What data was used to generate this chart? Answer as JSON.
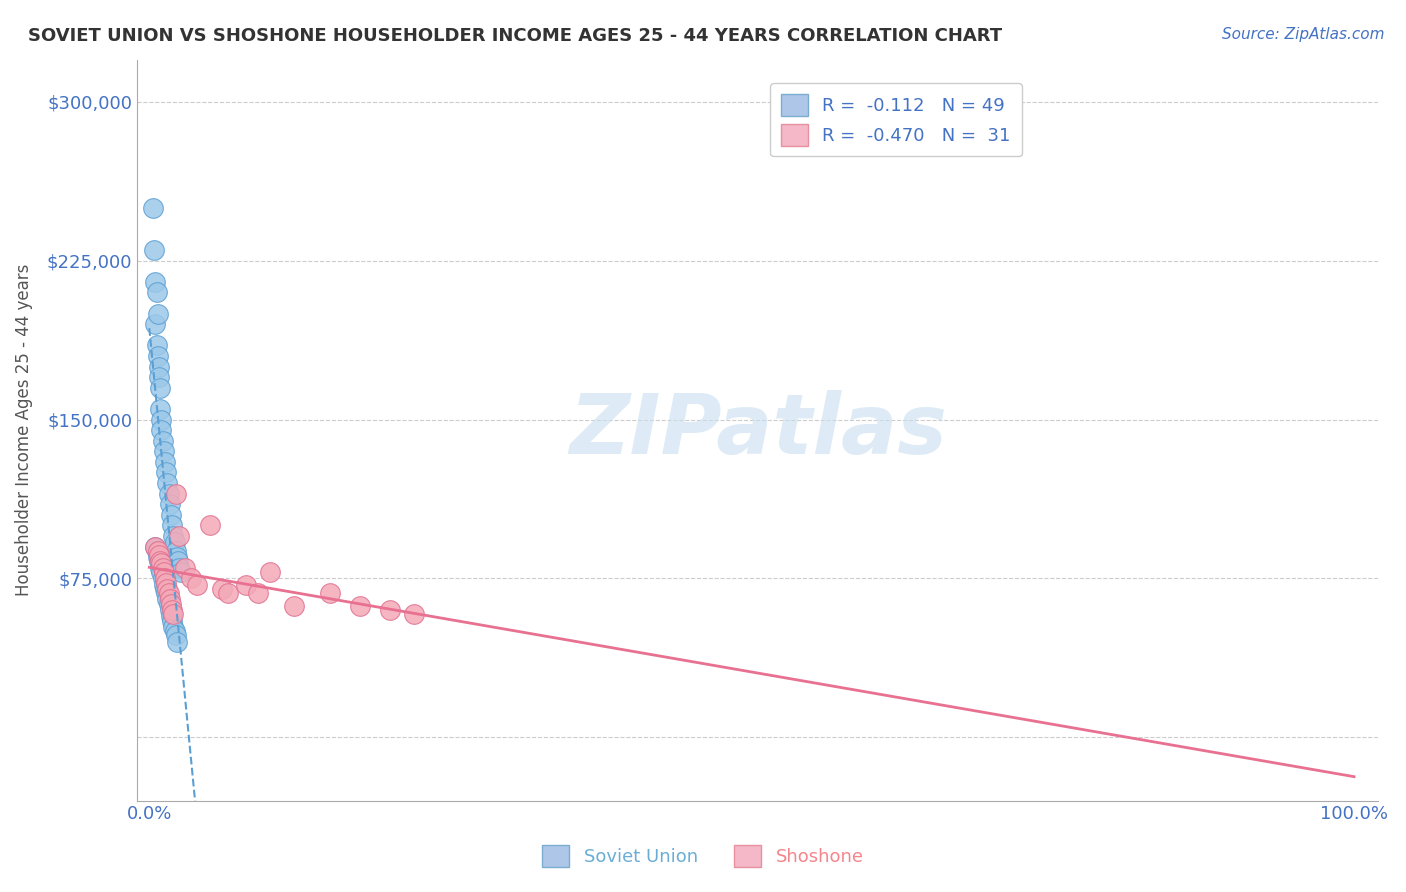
{
  "title": "SOVIET UNION VS SHOSHONE HOUSEHOLDER INCOME AGES 25 - 44 YEARS CORRELATION CHART",
  "source": "Source: ZipAtlas.com",
  "ylabel": "Householder Income Ages 25 - 44 years",
  "y_tick_labels": [
    "",
    "$75,000",
    "$150,000",
    "$225,000",
    "$300,000"
  ],
  "y_ticks": [
    0,
    75000,
    150000,
    225000,
    300000
  ],
  "xlim": [
    -0.01,
    1.02
  ],
  "ylim": [
    -30000,
    320000
  ],
  "su_color_fill": "#9dc8e8",
  "su_color_edge": "#5a9fd4",
  "sh_color_fill": "#f4aab8",
  "sh_color_edge": "#e07090",
  "su_line_color": "#5a9fd4",
  "sh_line_color": "#e87090",
  "legend_su_fill": "#aec6e8",
  "legend_su_edge": "#7aadd0",
  "legend_sh_fill": "#f4b8c8",
  "legend_sh_edge": "#e890a0",
  "legend_label_su": "R =  -0.112   N = 49",
  "legend_label_sh": "R =  -0.470   N =  31",
  "bottom_label_su": "Soviet Union",
  "bottom_label_sh": "Shoshone",
  "bottom_su_color": "#6aaed6",
  "bottom_sh_color": "#f4868c",
  "watermark": "ZIPatlas",
  "watermark_color": "#c8dff0",
  "grid_color": "#cccccc",
  "background_color": "#ffffff",
  "title_color": "#333333",
  "axis_label_color": "#555555",
  "tick_label_color": "#4472c4",
  "su_x": [
    0.003,
    0.004,
    0.005,
    0.005,
    0.006,
    0.006,
    0.007,
    0.007,
    0.008,
    0.008,
    0.009,
    0.009,
    0.01,
    0.01,
    0.011,
    0.012,
    0.013,
    0.014,
    0.015,
    0.016,
    0.017,
    0.018,
    0.019,
    0.02,
    0.021,
    0.022,
    0.023,
    0.024,
    0.025,
    0.026,
    0.005,
    0.006,
    0.007,
    0.008,
    0.009,
    0.01,
    0.011,
    0.012,
    0.013,
    0.014,
    0.015,
    0.016,
    0.017,
    0.018,
    0.019,
    0.02,
    0.021,
    0.022,
    0.023
  ],
  "su_y": [
    250000,
    230000,
    215000,
    195000,
    210000,
    185000,
    200000,
    180000,
    175000,
    170000,
    165000,
    155000,
    150000,
    145000,
    140000,
    135000,
    130000,
    125000,
    120000,
    115000,
    110000,
    105000,
    100000,
    95000,
    92000,
    88000,
    85000,
    83000,
    80000,
    78000,
    90000,
    88000,
    85000,
    83000,
    80000,
    78000,
    75000,
    72000,
    70000,
    68000,
    65000,
    63000,
    60000,
    57000,
    55000,
    52000,
    50000,
    48000,
    45000
  ],
  "sh_x": [
    0.005,
    0.007,
    0.008,
    0.009,
    0.01,
    0.011,
    0.012,
    0.013,
    0.014,
    0.015,
    0.016,
    0.017,
    0.018,
    0.019,
    0.02,
    0.022,
    0.025,
    0.03,
    0.035,
    0.04,
    0.05,
    0.06,
    0.065,
    0.08,
    0.09,
    0.1,
    0.12,
    0.15,
    0.175,
    0.2,
    0.22
  ],
  "sh_y": [
    90000,
    88000,
    86000,
    83000,
    82000,
    80000,
    78000,
    75000,
    73000,
    70000,
    68000,
    65000,
    63000,
    60000,
    58000,
    115000,
    95000,
    80000,
    75000,
    72000,
    100000,
    70000,
    68000,
    72000,
    68000,
    78000,
    62000,
    68000,
    62000,
    60000,
    58000
  ]
}
